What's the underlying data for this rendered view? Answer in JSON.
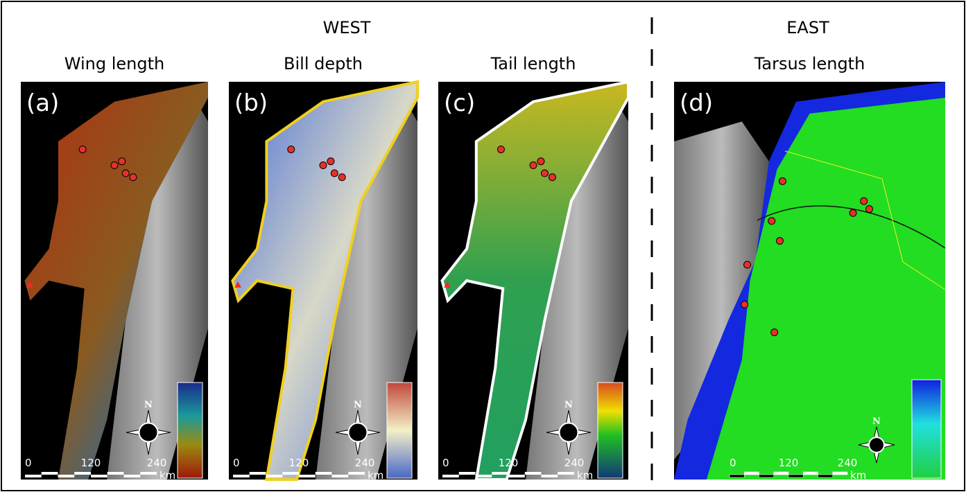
{
  "header": {
    "west": "WEST",
    "east": "EAST"
  },
  "panels": [
    {
      "letter": "(a)",
      "title": "Wing length",
      "scale": [
        "0",
        "120",
        "240"
      ],
      "unit": "km",
      "north": "N"
    },
    {
      "letter": "(b)",
      "title": "Bill depth",
      "scale": [
        "0",
        "120",
        "240"
      ],
      "unit": "km",
      "north": "N"
    },
    {
      "letter": "(c)",
      "title": "Tail length",
      "scale": [
        "0",
        "120",
        "240"
      ],
      "unit": "km",
      "north": "N"
    },
    {
      "letter": "(d)",
      "title": "Tarsus length",
      "scale": [
        "0",
        "120",
        "240"
      ],
      "unit": "km",
      "north": "N"
    }
  ]
}
